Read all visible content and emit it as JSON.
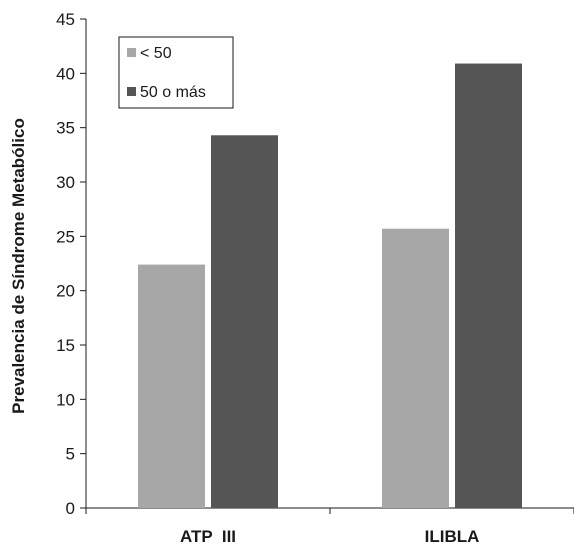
{
  "chart_data": {
    "type": "bar",
    "categories": [
      "ATP  III",
      "ILIBLA"
    ],
    "series": [
      {
        "name": "< 50",
        "values": [
          22.4,
          25.7
        ],
        "color": "#a7a7a7"
      },
      {
        "name": "50 o más",
        "values": [
          34.3,
          40.9
        ],
        "color": "#555556"
      }
    ],
    "title": "",
    "xlabel": "",
    "ylabel": "Prevalencia de Síndrome Metabólico",
    "ylim": [
      0,
      45
    ],
    "yticks": [
      "0",
      "5",
      "10",
      "15",
      "20",
      "25",
      "30",
      "35",
      "40",
      "45"
    ],
    "grid": false,
    "legend_position": "top-left"
  }
}
